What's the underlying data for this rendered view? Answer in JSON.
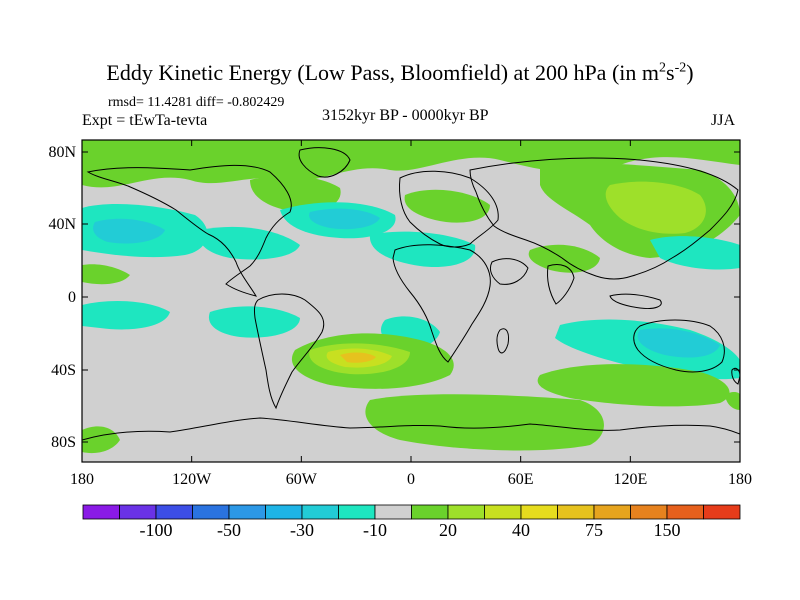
{
  "title": {
    "main": "Eddy Kinetic Energy (Low Pass, Bloomfield) at 200 hPa (in m",
    "sup1": "2",
    "mid": "s",
    "sup2": "-2",
    "end": ")"
  },
  "stats": "rmsd= 11.4281 diff= -0.802429",
  "expt": "Expt = tEwTa-tevta",
  "period": "3152kyr BP - 0000kyr BP",
  "season": "JJA",
  "lat_ticks": [
    "80N",
    "40N",
    "0",
    "40S",
    "80S"
  ],
  "lon_ticks": [
    "180",
    "120W",
    "60W",
    "0",
    "60E",
    "120E",
    "180"
  ],
  "colorbar": {
    "colors": [
      "#8a1ae6",
      "#6a32e6",
      "#3c4ee6",
      "#2a73e0",
      "#2c98e6",
      "#1eb4e6",
      "#22ccd6",
      "#1ee6c0",
      "#d0d0d0",
      "#6ad22c",
      "#9ee02a",
      "#c8e020",
      "#e6dc1e",
      "#e6c21e",
      "#e6a41e",
      "#e6821e",
      "#e6601c",
      "#e63c1a"
    ],
    "labels": [
      "-100",
      "-50",
      "-30",
      "-10",
      "20",
      "40",
      "75",
      "150"
    ]
  },
  "legend_colors": {
    "land_background": "#d0d0d0",
    "neg_light": "#1ee6c0",
    "neg_mid": "#22ccd6",
    "neg_strong": "#1eb4e6",
    "pos_light": "#6ad22c",
    "pos_mid": "#9ee02a",
    "pos_strong": "#c8e020",
    "pos_peak": "#e6c21e"
  }
}
